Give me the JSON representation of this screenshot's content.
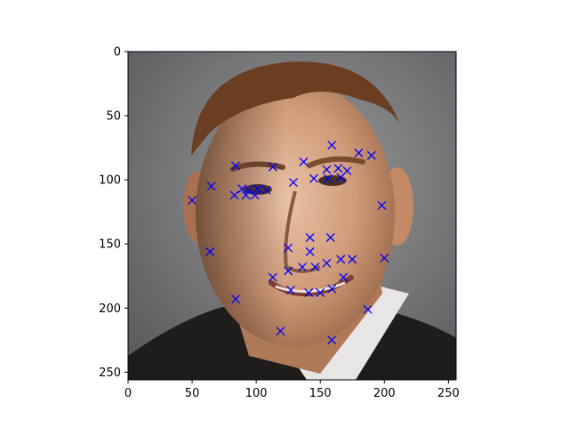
{
  "chart_data": {
    "type": "scatter",
    "title": "",
    "xlabel": "",
    "ylabel": "",
    "xlim": [
      0,
      256
    ],
    "ylim": [
      256,
      0
    ],
    "grid": false,
    "background": "face-photo",
    "marker": "x",
    "marker_color": "#0000ff",
    "xticks": [
      0,
      50,
      100,
      150,
      200,
      250
    ],
    "yticks": [
      0,
      50,
      100,
      150,
      200,
      250
    ],
    "points": [
      {
        "x": 159,
        "y": 73
      },
      {
        "x": 180,
        "y": 79
      },
      {
        "x": 190,
        "y": 81
      },
      {
        "x": 137,
        "y": 86
      },
      {
        "x": 84,
        "y": 89
      },
      {
        "x": 113,
        "y": 90
      },
      {
        "x": 155,
        "y": 92
      },
      {
        "x": 164,
        "y": 91
      },
      {
        "x": 171,
        "y": 93
      },
      {
        "x": 145,
        "y": 99
      },
      {
        "x": 156,
        "y": 99
      },
      {
        "x": 166,
        "y": 98
      },
      {
        "x": 129,
        "y": 102
      },
      {
        "x": 65,
        "y": 105
      },
      {
        "x": 89,
        "y": 107
      },
      {
        "x": 94,
        "y": 108
      },
      {
        "x": 101,
        "y": 107
      },
      {
        "x": 108,
        "y": 108
      },
      {
        "x": 83,
        "y": 112
      },
      {
        "x": 92,
        "y": 112
      },
      {
        "x": 99,
        "y": 112
      },
      {
        "x": 50,
        "y": 116
      },
      {
        "x": 198,
        "y": 120
      },
      {
        "x": 142,
        "y": 145
      },
      {
        "x": 158,
        "y": 145
      },
      {
        "x": 125,
        "y": 153
      },
      {
        "x": 142,
        "y": 156
      },
      {
        "x": 64,
        "y": 156
      },
      {
        "x": 200,
        "y": 161
      },
      {
        "x": 166,
        "y": 162
      },
      {
        "x": 175,
        "y": 162
      },
      {
        "x": 155,
        "y": 165
      },
      {
        "x": 136,
        "y": 168
      },
      {
        "x": 146,
        "y": 168
      },
      {
        "x": 125,
        "y": 171
      },
      {
        "x": 113,
        "y": 176
      },
      {
        "x": 168,
        "y": 176
      },
      {
        "x": 127,
        "y": 186
      },
      {
        "x": 141,
        "y": 188
      },
      {
        "x": 150,
        "y": 188
      },
      {
        "x": 159,
        "y": 185
      },
      {
        "x": 84,
        "y": 193
      },
      {
        "x": 187,
        "y": 201
      },
      {
        "x": 119,
        "y": 218
      },
      {
        "x": 159,
        "y": 225
      }
    ]
  }
}
